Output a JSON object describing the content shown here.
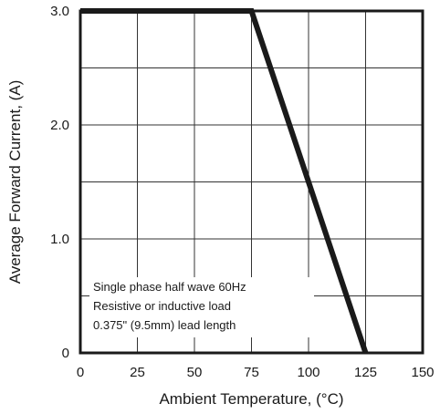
{
  "chart_data": {
    "type": "line",
    "xlabel": "Ambient Temperature, (°C)",
    "ylabel": "Average Forward Current, (A)",
    "xlim": [
      0,
      150
    ],
    "ylim": [
      0,
      3.0
    ],
    "x_ticks": [
      0,
      25,
      50,
      75,
      100,
      125,
      150
    ],
    "x_tick_labels": [
      "0",
      "25",
      "50",
      "75",
      "100",
      "125",
      "150"
    ],
    "y_ticks": [
      0,
      1.0,
      2.0,
      3.0
    ],
    "y_tick_labels": [
      "0",
      "1.0",
      "2.0",
      "3.0"
    ],
    "grid": true,
    "annotations": [
      "Single phase half wave 60Hz",
      "Resistive or inductive load",
      "0.375\" (9.5mm) lead length"
    ],
    "series": [
      {
        "x": [
          0,
          75,
          125
        ],
        "y": [
          3.0,
          3.0,
          0
        ]
      }
    ]
  }
}
